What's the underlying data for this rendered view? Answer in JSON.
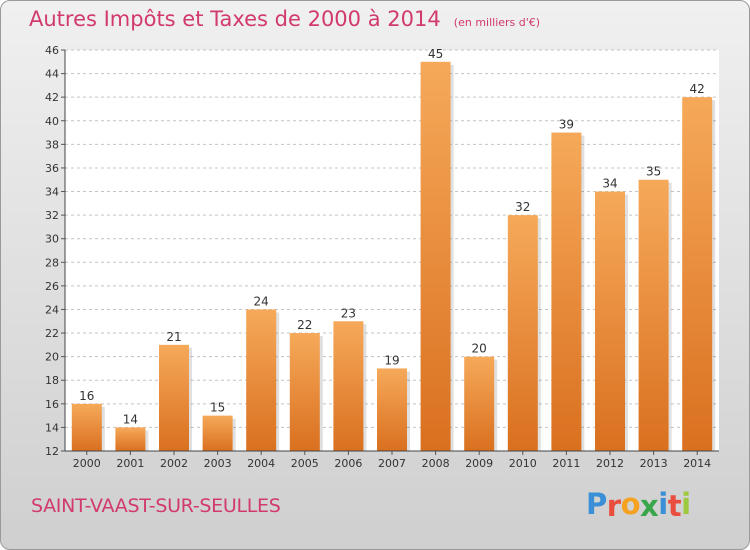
{
  "title": "Autres Impôts et Taxes de 2000 à 2014",
  "subtitle": "(en milliers d'€)",
  "place": "SAINT-VAAST-SUR-SEULLES",
  "brand": {
    "letters": [
      "P",
      "r",
      "o",
      "x",
      "i",
      "t",
      "i"
    ],
    "colors": [
      "#3b8fd6",
      "#e94d3d",
      "#f4a21f",
      "#3aa64a",
      "#3b8fd6",
      "#e94d3d",
      "#9dc93f"
    ]
  },
  "colors": {
    "bar_light": "#f6a95a",
    "bar_dark": "#d9701f",
    "title": "#d13a6b",
    "grid": "#c4c4c4"
  },
  "chart_data": {
    "type": "bar",
    "title": "Autres Impôts et Taxes de 2000 à 2014",
    "subtitle": "(en milliers d'€)",
    "categories": [
      "2000",
      "2001",
      "2002",
      "2003",
      "2004",
      "2005",
      "2006",
      "2007",
      "2008",
      "2009",
      "2010",
      "2011",
      "2012",
      "2013",
      "2014"
    ],
    "values": [
      16,
      14,
      21,
      15,
      24,
      22,
      23,
      19,
      45,
      20,
      32,
      39,
      34,
      35,
      42
    ],
    "ylim": [
      12,
      46
    ],
    "yticks": [
      12,
      14,
      16,
      18,
      20,
      22,
      24,
      26,
      28,
      30,
      32,
      34,
      36,
      38,
      40,
      42,
      44,
      46
    ],
    "xlabel": "",
    "ylabel": "",
    "grid": true
  }
}
